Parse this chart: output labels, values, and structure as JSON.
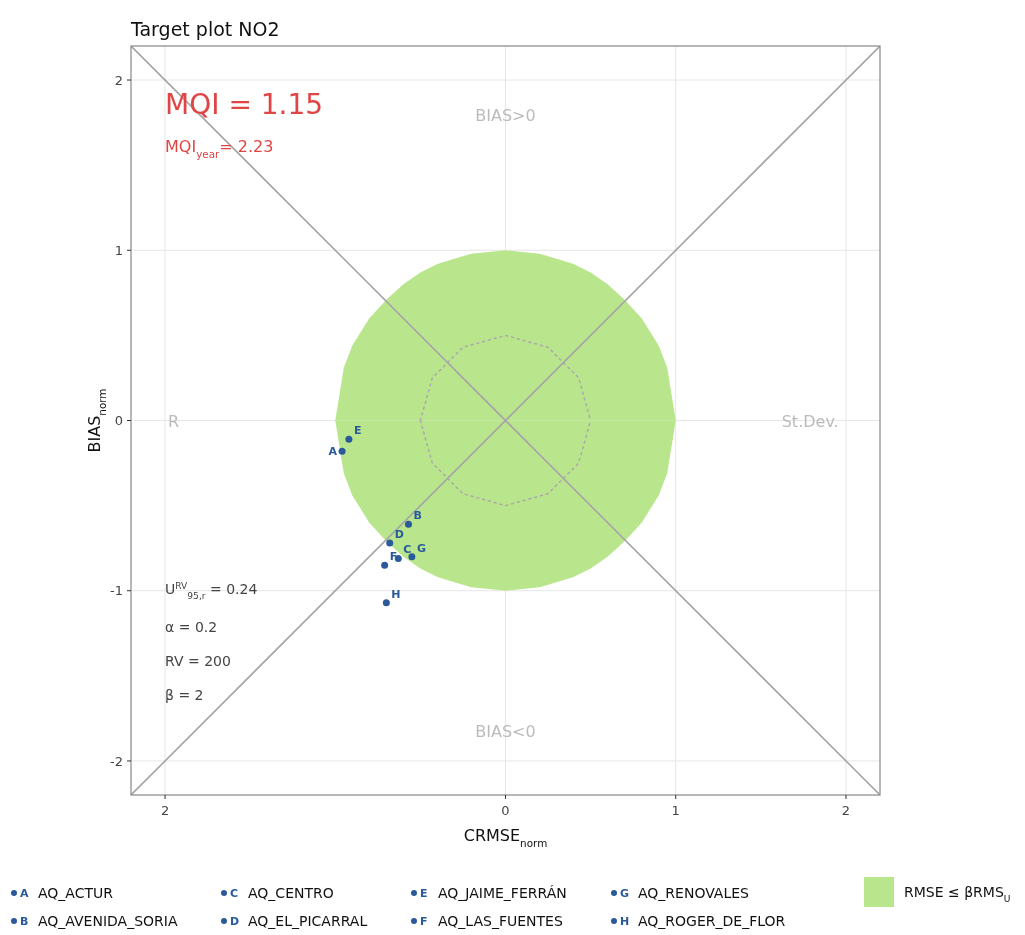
{
  "chart_data": {
    "type": "scatter",
    "title": "Target plot NO2",
    "xlabel": "CRMSE$_{norm}$",
    "ylabel": "BIAS$_{norm}$",
    "xlim": [
      -2.2,
      2.2
    ],
    "ylim": [
      -2.2,
      2.2
    ],
    "xticks": [
      {
        "value": -2,
        "label": "2"
      },
      0,
      1,
      2
    ],
    "yticks": [
      -2,
      -1,
      0,
      1,
      2
    ],
    "grid": true,
    "legend": "bottom",
    "series": [
      {
        "name": "AQ_ACTUR",
        "color": "#2a5a9a",
        "x": [
          -0.96
        ],
        "values": [
          -0.18
        ]
      },
      {
        "name": "AQ_AVENIDA_SORIA",
        "color": "#2a5a9a",
        "x": [
          -0.57
        ],
        "values": [
          -0.61
        ]
      },
      {
        "name": "AQ_CENTRO",
        "color": "#2a5a9a",
        "x": [
          -0.63
        ],
        "values": [
          -0.81
        ]
      },
      {
        "name": "AQ_EL_PICARRAL",
        "color": "#2a5a9a",
        "x": [
          -0.68
        ],
        "values": [
          -0.72
        ]
      },
      {
        "name": "AQ_JAIME_FERRÁN",
        "color": "#2a5a9a",
        "x": [
          -0.92
        ],
        "values": [
          -0.11
        ]
      },
      {
        "name": "AQ_LAS_FUENTES",
        "color": "#2a5a9a",
        "x": [
          -0.71
        ],
        "values": [
          -0.85
        ]
      },
      {
        "name": "AQ_RENOVALES",
        "color": "#2a5a9a",
        "x": [
          -0.55
        ],
        "values": [
          -0.8
        ]
      },
      {
        "name": "AQ_ROGER_DE_FLOR",
        "color": "#2a5a9a",
        "x": [
          -0.7
        ],
        "values": [
          -1.07
        ]
      },
      {
        "name": "RMSE ≤ βRMS$_{U}$",
        "type": "area",
        "color": "#b9e68c",
        "x": [
          -1,
          -0.95,
          -0.9,
          -0.8,
          -0.7,
          -0.6,
          -0.5,
          -0.4,
          -0.3,
          -0.2,
          -0.1,
          0,
          0.1,
          0.2,
          0.3,
          0.4,
          0.5,
          0.6,
          0.7,
          0.8,
          0.9,
          0.95,
          1
        ],
        "values": [
          0,
          0.31,
          0.44,
          0.6,
          0.71,
          0.8,
          0.87,
          0.92,
          0.95,
          0.98,
          0.99,
          1,
          0.99,
          0.98,
          0.95,
          0.92,
          0.87,
          0.8,
          0.71,
          0.6,
          0.44,
          0.31,
          0
        ]
      },
      {
        "type": "area",
        "color": "#b9e68c",
        "x": [
          -1,
          -0.95,
          -0.9,
          -0.8,
          -0.7,
          -0.6,
          -0.5,
          -0.4,
          -0.3,
          -0.2,
          -0.1,
          0,
          0.1,
          0.2,
          0.3,
          0.4,
          0.5,
          0.6,
          0.7,
          0.8,
          0.9,
          0.95,
          1
        ],
        "values": [
          0,
          -0.31,
          -0.44,
          -0.6,
          -0.71,
          -0.8,
          -0.87,
          -0.92,
          -0.95,
          -0.98,
          -0.99,
          -1,
          -0.99,
          -0.98,
          -0.95,
          -0.92,
          -0.87,
          -0.8,
          -0.71,
          -0.6,
          -0.44,
          -0.31,
          0
        ]
      },
      {
        "type": "line",
        "color": "#aaaaaa",
        "line_style": "dotted",
        "x": [
          -0.5,
          -0.43,
          -0.25,
          0,
          0.25,
          0.43,
          0.5
        ],
        "values": [
          0,
          0.25,
          0.43,
          0.5,
          0.43,
          0.25,
          0
        ]
      },
      {
        "type": "line",
        "color": "#aaaaaa",
        "line_style": "dotted",
        "x": [
          -0.5,
          -0.43,
          -0.25,
          0,
          0.25,
          0.43,
          0.5
        ],
        "values": [
          0,
          -0.25,
          -0.43,
          -0.5,
          -0.43,
          -0.25,
          0
        ]
      },
      {
        "type": "line",
        "color": "#a6a6a6",
        "line_style": "solid",
        "x": [
          -2.2,
          2.2
        ],
        "values": [
          -2.2,
          2.2
        ]
      },
      {
        "type": "line",
        "color": "#a6a6a6",
        "line_style": "solid",
        "x": [
          -2.2,
          2.2
        ],
        "values": [
          2.2,
          -2.2
        ]
      }
    ],
    "annotations": [
      "MQI = 1.15",
      "MQI$_{year}$= 2.23",
      "U$^{RV}$$_{95,r}$ = 0.24",
      "α = 0.2",
      "RV = 200",
      "β = 2",
      "BIAS>0",
      "BIAS<0",
      "R",
      "St.Dev.",
      {
        "text": "A",
        "x": -0.96,
        "y": -0.18
      },
      {
        "text": "B",
        "x": -0.57,
        "y": -0.61
      },
      {
        "text": "C",
        "x": -0.63,
        "y": -0.81
      },
      {
        "text": "D",
        "x": -0.68,
        "y": -0.72
      },
      {
        "text": "E",
        "x": -0.92,
        "y": -0.11
      },
      {
        "text": "F",
        "x": -0.71,
        "y": -0.85
      },
      {
        "text": "G",
        "x": -0.55,
        "y": -0.8
      },
      {
        "text": "H",
        "x": -0.7,
        "y": -1.07
      }
    ]
  }
}
